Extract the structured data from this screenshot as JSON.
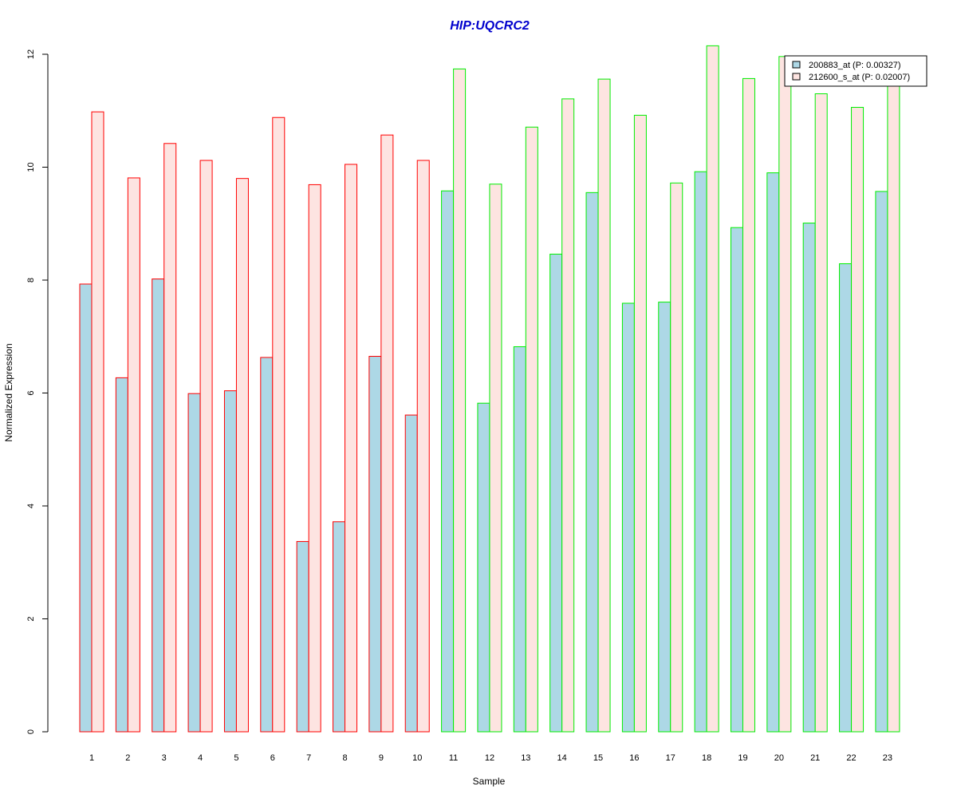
{
  "chart_data": {
    "type": "bar",
    "title": "HIP:UQCRC2",
    "xlabel": "Sample",
    "ylabel": "Normalized Expression",
    "ylim": [
      0,
      12
    ],
    "yticks": [
      "0",
      "2",
      "4",
      "6",
      "8",
      "10",
      "12"
    ],
    "categories": [
      "1",
      "2",
      "3",
      "4",
      "5",
      "6",
      "7",
      "8",
      "9",
      "10",
      "11",
      "12",
      "13",
      "14",
      "15",
      "16",
      "17",
      "18",
      "19",
      "20",
      "21",
      "22",
      "23"
    ],
    "series": [
      {
        "name": "200883_at (P: 0.00327)",
        "fill": "#add8e6",
        "values": [
          7.93,
          6.27,
          8.02,
          5.99,
          6.04,
          6.63,
          3.37,
          3.72,
          6.65,
          5.61,
          9.58,
          5.82,
          6.82,
          8.46,
          9.55,
          7.59,
          7.61,
          9.92,
          8.93,
          9.9,
          9.01,
          8.29,
          9.57
        ]
      },
      {
        "name": "212600_s_at (P: 0.02007)",
        "fill": "#fde4e1",
        "values": [
          10.98,
          9.81,
          10.42,
          10.12,
          9.8,
          10.88,
          9.69,
          10.05,
          10.57,
          10.12,
          11.74,
          9.7,
          10.71,
          11.21,
          11.56,
          10.92,
          9.72,
          12.15,
          11.57,
          11.96,
          11.3,
          11.06,
          11.52
        ]
      }
    ],
    "group_outline": [
      "red",
      "red",
      "red",
      "red",
      "red",
      "red",
      "red",
      "red",
      "red",
      "red",
      "green",
      "green",
      "green",
      "green",
      "green",
      "green",
      "green",
      "green",
      "green",
      "green",
      "green",
      "green",
      "green"
    ],
    "outline_colors": {
      "red": "#ff0000",
      "green": "#00ee00"
    },
    "title_color": "#0000cd",
    "grid": false,
    "legend_position": "top-right"
  }
}
